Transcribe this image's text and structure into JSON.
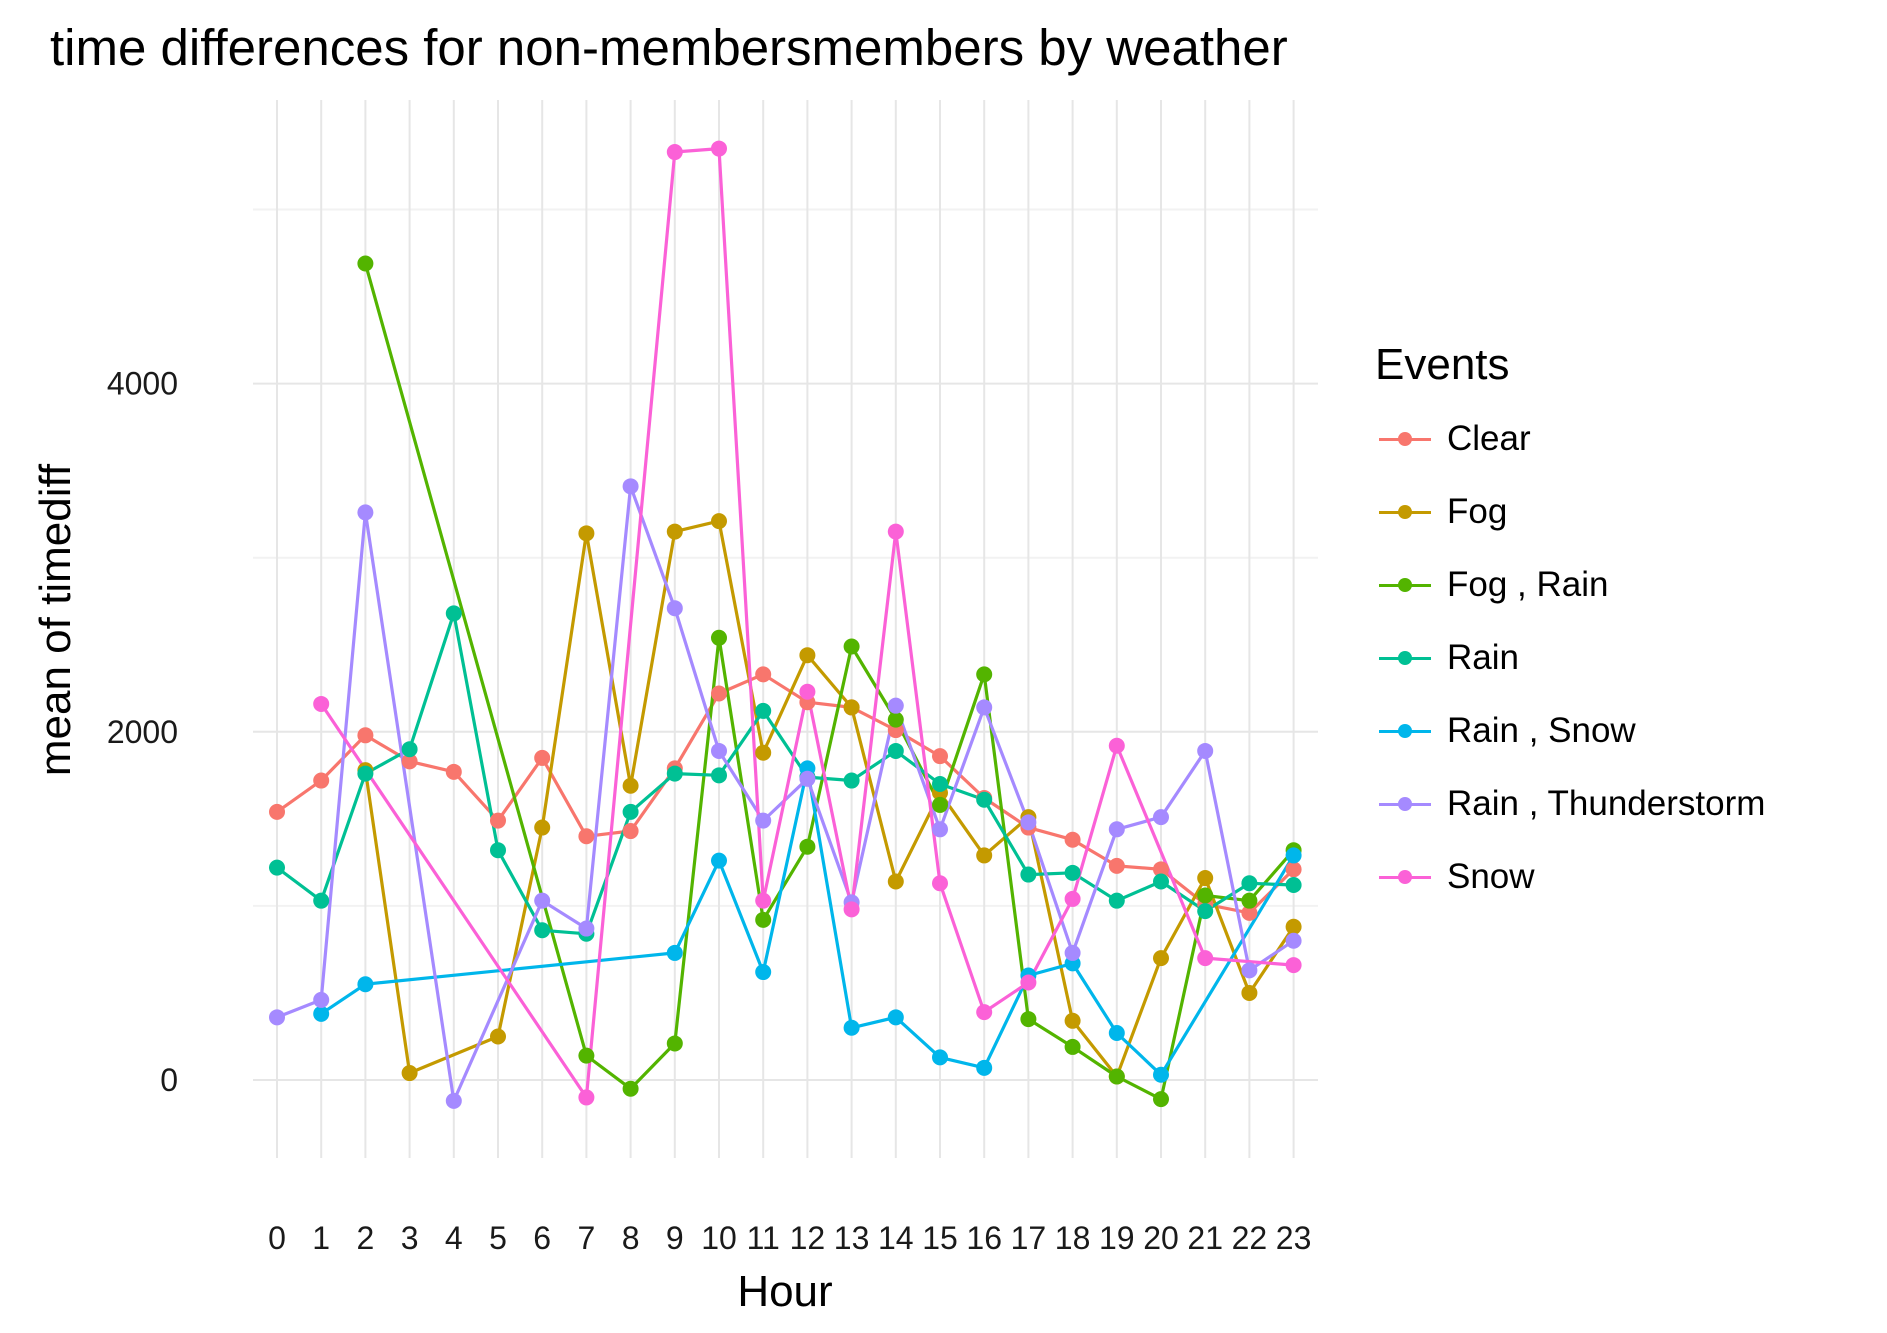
{
  "title": "time differences for non-membersmembers by weather",
  "chart_data": {
    "type": "line",
    "title": "time differences for non-membersmembers by weather",
    "xlabel": "Hour",
    "ylabel": "mean of timediff",
    "x_ticks": [
      "0",
      "1",
      "2",
      "3",
      "4",
      "5",
      "6",
      "7",
      "8",
      "9",
      "10",
      "11",
      "12",
      "13",
      "14",
      "15",
      "16",
      "17",
      "18",
      "19",
      "20",
      "21",
      "22",
      "23"
    ],
    "y_ticks": [
      0,
      2000,
      4000
    ],
    "ylim": [
      -450,
      5500
    ],
    "grid": true,
    "legend_title": "Events",
    "legend_position": "right",
    "series": [
      {
        "name": "Clear",
        "color": "#F8766D",
        "x": [
          0,
          1,
          2,
          3,
          4,
          5,
          6,
          7,
          8,
          9,
          10,
          11,
          12,
          13,
          14,
          15,
          16,
          17,
          18,
          19,
          20,
          21,
          22,
          23
        ],
        "y": [
          1540,
          1720,
          1980,
          1830,
          1770,
          1490,
          1850,
          1400,
          1430,
          1790,
          2220,
          2330,
          2170,
          2140,
          2010,
          1860,
          1620,
          1450,
          1380,
          1230,
          1210,
          1010,
          960,
          1210
        ]
      },
      {
        "name": "Fog",
        "color": "#C49A00",
        "x": [
          2,
          3,
          5,
          6,
          7,
          8,
          9,
          10,
          11,
          12,
          13,
          14,
          15,
          16,
          17,
          18,
          19,
          20,
          21,
          22,
          23
        ],
        "y": [
          1780,
          40,
          250,
          1450,
          3140,
          1690,
          3150,
          3210,
          1880,
          2440,
          2140,
          1140,
          1650,
          1290,
          1510,
          340,
          20,
          700,
          1160,
          500,
          880
        ]
      },
      {
        "name": "Fog , Rain",
        "color": "#53B400",
        "x": [
          2,
          7,
          8,
          9,
          10,
          11,
          12,
          13,
          14,
          15,
          16,
          17,
          18,
          19,
          20,
          21,
          22,
          23
        ],
        "y": [
          4690,
          140,
          -50,
          210,
          2540,
          920,
          1340,
          2490,
          2070,
          1580,
          2330,
          350,
          190,
          20,
          -110,
          1060,
          1030,
          1320
        ]
      },
      {
        "name": "Rain",
        "color": "#00C094",
        "x": [
          0,
          1,
          2,
          3,
          4,
          5,
          6,
          7,
          8,
          9,
          10,
          11,
          12,
          13,
          14,
          15,
          16,
          17,
          18,
          19,
          20,
          21,
          22,
          23
        ],
        "y": [
          1220,
          1030,
          1760,
          1900,
          2680,
          1320,
          860,
          840,
          1540,
          1760,
          1750,
          2120,
          1740,
          1720,
          1890,
          1700,
          1610,
          1180,
          1190,
          1030,
          1140,
          970,
          1130,
          1120
        ]
      },
      {
        "name": "Rain , Snow",
        "color": "#00B6EB",
        "x": [
          1,
          2,
          9,
          10,
          11,
          12,
          13,
          14,
          15,
          16,
          17,
          18,
          19,
          20,
          23
        ],
        "y": [
          380,
          550,
          730,
          1260,
          620,
          1790,
          300,
          360,
          130,
          70,
          600,
          670,
          270,
          30,
          1290
        ]
      },
      {
        "name": "Rain , Thunderstorm",
        "color": "#A58AFF",
        "x": [
          0,
          1,
          2,
          4,
          6,
          7,
          8,
          9,
          10,
          11,
          12,
          13,
          14,
          15,
          16,
          17,
          18,
          19,
          20,
          21,
          22,
          23
        ],
        "y": [
          360,
          460,
          3260,
          -120,
          1030,
          870,
          3410,
          2710,
          1890,
          1490,
          1730,
          1020,
          2150,
          1440,
          2140,
          1480,
          730,
          1440,
          1510,
          1890,
          630,
          800
        ]
      },
      {
        "name": "Snow",
        "color": "#FB61D7",
        "x": [
          1,
          7,
          9,
          10,
          11,
          12,
          13,
          14,
          15,
          16,
          17,
          18,
          19,
          21,
          23
        ],
        "y": [
          2160,
          -100,
          5330,
          5350,
          1030,
          2230,
          980,
          3150,
          1130,
          390,
          560,
          1040,
          1920,
          700,
          660
        ]
      }
    ]
  }
}
